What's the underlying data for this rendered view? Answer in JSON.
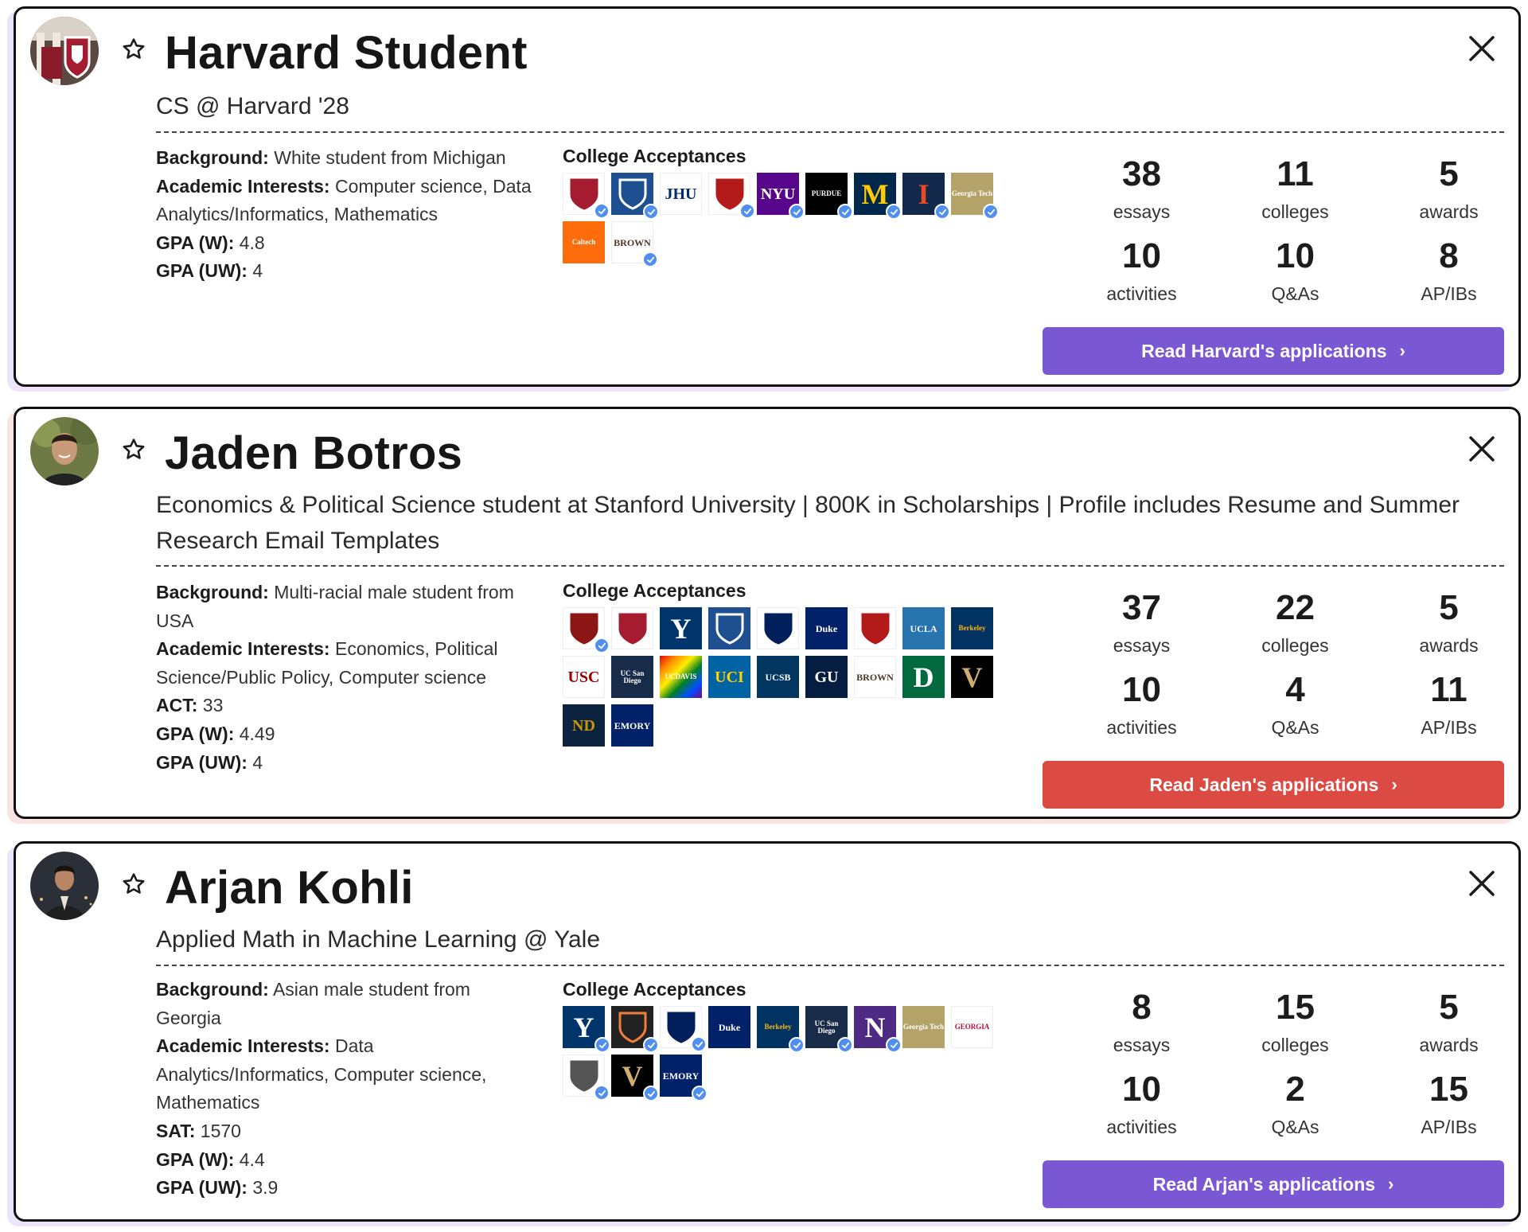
{
  "cards": [
    {
      "name": "Harvard Student",
      "headline": "CS @ Harvard '28",
      "background_label": "Background:",
      "background_value": " White student from Michigan",
      "interests_label": "Academic Interests:",
      "interests_value": " Computer science, Data Analytics/Informatics, Mathematics",
      "score_label": "",
      "score_value": "",
      "gpa_w_label": "GPA (W):",
      "gpa_w_value": " 4.8",
      "gpa_uw_label": "GPA (UW):",
      "gpa_uw_value": " 4",
      "acceptances_title": "College Acceptances",
      "logos": [
        {
          "text": "",
          "bg": "#ffffff",
          "fg": "#a51c30",
          "icon": "harvard-shield-icon",
          "verified": true
        },
        {
          "text": "",
          "bg": "#1d4f91",
          "fg": "#ffffff",
          "icon": "columbia-crown-icon",
          "verified": true
        },
        {
          "text": "JHU",
          "bg": "#ffffff",
          "fg": "#002d72",
          "icon": "jhu-logo-icon",
          "verified": false
        },
        {
          "text": "",
          "bg": "#ffffff",
          "fg": "#b31b1b",
          "icon": "cornell-seal-icon",
          "verified": true
        },
        {
          "text": "NYU",
          "bg": "#57068c",
          "fg": "#ffffff",
          "icon": "nyu-torch-icon",
          "verified": true
        },
        {
          "text": "PURDUE",
          "bg": "#000000",
          "fg": "#ffffff",
          "icon": "purdue-logo-icon",
          "verified": true
        },
        {
          "text": "M",
          "bg": "#00274c",
          "fg": "#ffcb05",
          "icon": "michigan-m-icon",
          "verified": true
        },
        {
          "text": "I",
          "bg": "#13294b",
          "fg": "#e84a27",
          "icon": "illinois-i-icon",
          "verified": true
        },
        {
          "text": "Georgia Tech",
          "bg": "#b3a369",
          "fg": "#ffffff",
          "icon": "georgia-tech-logo-icon",
          "verified": true
        },
        {
          "text": "Caltech",
          "bg": "#ff6c0c",
          "fg": "#ffffff",
          "icon": "caltech-logo-icon",
          "verified": false
        },
        {
          "text": "BROWN",
          "bg": "#ffffff",
          "fg": "#4e3629",
          "icon": "brown-shield-icon",
          "verified": true
        }
      ],
      "stats": [
        {
          "num": "38",
          "label": "essays"
        },
        {
          "num": "11",
          "label": "colleges"
        },
        {
          "num": "5",
          "label": "awards"
        },
        {
          "num": "10",
          "label": "activities"
        },
        {
          "num": "10",
          "label": "Q&As"
        },
        {
          "num": "8",
          "label": "AP/IBs"
        }
      ],
      "cta": "Read Harvard's applications",
      "cta_color": "#7b58d3"
    },
    {
      "name": "Jaden Botros",
      "headline": "Economics & Political Science student at Stanford University | 800K in Scholarships | Profile includes Resume and Summer Research Email Templates",
      "background_label": "Background:",
      "background_value": " Multi-racial male student from USA",
      "interests_label": "Academic Interests:",
      "interests_value": " Economics, Political Science/Public Policy, Computer science",
      "score_label": "ACT:",
      "score_value": " 33",
      "gpa_w_label": "GPA (W):",
      "gpa_w_value": " 4.49",
      "gpa_uw_label": "GPA (UW):",
      "gpa_uw_value": " 4",
      "acceptances_title": "College Acceptances",
      "logos": [
        {
          "text": "",
          "bg": "#ffffff",
          "fg": "#8c1515",
          "icon": "stanford-tree-icon",
          "verified": true
        },
        {
          "text": "",
          "bg": "#ffffff",
          "fg": "#a51c30",
          "icon": "harvard-shield-icon",
          "verified": false
        },
        {
          "text": "Y",
          "bg": "#00356b",
          "fg": "#ffffff",
          "icon": "yale-y-icon",
          "verified": false
        },
        {
          "text": "",
          "bg": "#1d4f91",
          "fg": "#ffffff",
          "icon": "columbia-crown-icon",
          "verified": false
        },
        {
          "text": "",
          "bg": "#ffffff",
          "fg": "#011f5b",
          "icon": "penn-shield-icon",
          "verified": false
        },
        {
          "text": "Duke",
          "bg": "#012169",
          "fg": "#ffffff",
          "icon": "duke-chapel-icon",
          "verified": false
        },
        {
          "text": "",
          "bg": "#ffffff",
          "fg": "#b31b1b",
          "icon": "cornell-seal-icon",
          "verified": false
        },
        {
          "text": "UCLA",
          "bg": "#2774ae",
          "fg": "#ffffff",
          "icon": "ucla-logo-icon",
          "verified": false
        },
        {
          "text": "Berkeley",
          "bg": "#003262",
          "fg": "#fdb515",
          "icon": "berkeley-seal-icon",
          "verified": false
        },
        {
          "text": "USC",
          "bg": "#ffffff",
          "fg": "#990000",
          "icon": "usc-logo-icon",
          "verified": false
        },
        {
          "text": "UC San Diego",
          "bg": "#182b49",
          "fg": "#ffffff",
          "icon": "ucsd-logo-icon",
          "verified": false
        },
        {
          "text": "UCDAVIS",
          "bg": "#rainbow",
          "fg": "#ffffff",
          "icon": "ucdavis-logo-icon",
          "verified": false
        },
        {
          "text": "UCI",
          "bg": "#0064a4",
          "fg": "#ffd200",
          "icon": "uci-logo-icon",
          "verified": false
        },
        {
          "text": "UCSB",
          "bg": "#003660",
          "fg": "#ffffff",
          "icon": "ucsb-logo-icon",
          "verified": false
        },
        {
          "text": "GU",
          "bg": "#041e42",
          "fg": "#ffffff",
          "icon": "georgetown-logo-icon",
          "verified": false
        },
        {
          "text": "BROWN",
          "bg": "#ffffff",
          "fg": "#4e3629",
          "icon": "brown-shield-icon",
          "verified": false
        },
        {
          "text": "D",
          "bg": "#00693e",
          "fg": "#ffffff",
          "icon": "dartmouth-d-icon",
          "verified": false
        },
        {
          "text": "V",
          "bg": "#000000",
          "fg": "#cfae70",
          "icon": "vanderbilt-v-icon",
          "verified": false
        },
        {
          "text": "ND",
          "bg": "#0c2340",
          "fg": "#c99700",
          "icon": "notre-dame-logo-icon",
          "verified": false
        },
        {
          "text": "EMORY",
          "bg": "#012169",
          "fg": "#ffffff",
          "icon": "emory-shield-icon",
          "verified": false
        }
      ],
      "stats": [
        {
          "num": "37",
          "label": "essays"
        },
        {
          "num": "22",
          "label": "colleges"
        },
        {
          "num": "5",
          "label": "awards"
        },
        {
          "num": "10",
          "label": "activities"
        },
        {
          "num": "4",
          "label": "Q&As"
        },
        {
          "num": "11",
          "label": "AP/IBs"
        }
      ],
      "cta": "Read Jaden's applications",
      "cta_color": "#db4a43"
    },
    {
      "name": "Arjan Kohli",
      "headline": "Applied Math in Machine Learning @ Yale",
      "background_label": "Background:",
      "background_value": " Asian male student from Georgia",
      "interests_label": "Academic Interests:",
      "interests_value": " Data Analytics/Informatics, Computer science, Mathematics",
      "score_label": "SAT:",
      "score_value": " 1570",
      "gpa_w_label": "GPA (W):",
      "gpa_w_value": " 4.4",
      "gpa_uw_label": "GPA (UW):",
      "gpa_uw_value": " 3.9",
      "acceptances_title": "College Acceptances",
      "logos": [
        {
          "text": "Y",
          "bg": "#00356b",
          "fg": "#ffffff",
          "icon": "yale-y-icon",
          "verified": true
        },
        {
          "text": "",
          "bg": "#222222",
          "fg": "#f07f3c",
          "icon": "princeton-logo-icon",
          "verified": true
        },
        {
          "text": "",
          "bg": "#ffffff",
          "fg": "#011f5b",
          "icon": "penn-shield-icon",
          "verified": true
        },
        {
          "text": "Duke",
          "bg": "#012169",
          "fg": "#ffffff",
          "icon": "duke-chapel-icon",
          "verified": false
        },
        {
          "text": "Berkeley",
          "bg": "#003262",
          "fg": "#fdb515",
          "icon": "berkeley-seal-icon",
          "verified": true
        },
        {
          "text": "UC San Diego",
          "bg": "#182b49",
          "fg": "#ffffff",
          "icon": "ucsd-logo-icon",
          "verified": true
        },
        {
          "text": "N",
          "bg": "#4e2a84",
          "fg": "#ffffff",
          "icon": "northwestern-n-icon",
          "verified": true
        },
        {
          "text": "Georgia Tech",
          "bg": "#b3a369",
          "fg": "#ffffff",
          "icon": "georgia-tech-logo-icon",
          "verified": false
        },
        {
          "text": "GEORGIA",
          "bg": "#ffffff",
          "fg": "#ba0c2f",
          "icon": "uga-logo-icon",
          "verified": false
        },
        {
          "text": "",
          "bg": "#ffffff",
          "fg": "#555555",
          "icon": "rice-owl-icon",
          "verified": true
        },
        {
          "text": "V",
          "bg": "#000000",
          "fg": "#cfae70",
          "icon": "vanderbilt-v-icon",
          "verified": true
        },
        {
          "text": "EMORY",
          "bg": "#012169",
          "fg": "#ffffff",
          "icon": "emory-shield-icon",
          "verified": true
        }
      ],
      "stats": [
        {
          "num": "8",
          "label": "essays"
        },
        {
          "num": "15",
          "label": "colleges"
        },
        {
          "num": "5",
          "label": "awards"
        },
        {
          "num": "10",
          "label": "activities"
        },
        {
          "num": "2",
          "label": "Q&As"
        },
        {
          "num": "15",
          "label": "AP/IBs"
        }
      ],
      "cta": "Read Arjan's applications",
      "cta_color": "#7b58d3"
    }
  ]
}
